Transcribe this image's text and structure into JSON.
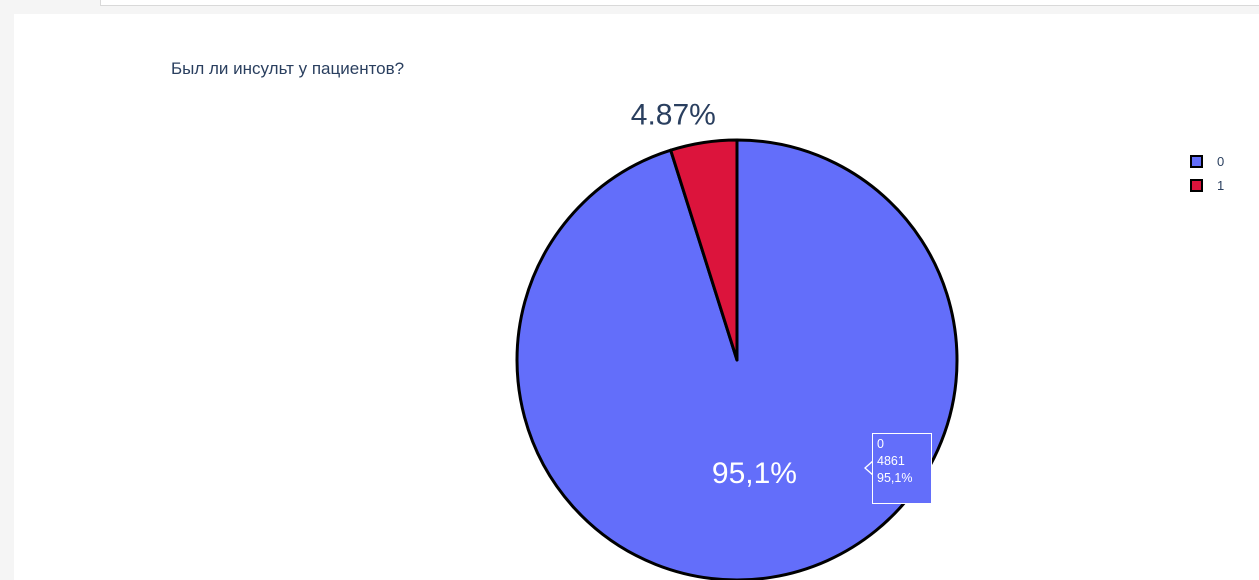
{
  "chart_data": {
    "type": "pie",
    "title": "Был ли инсульт у пациентов?",
    "categories": [
      "0",
      "1"
    ],
    "values": [
      4861,
      249
    ],
    "percent_labels": [
      "95,1%",
      "4.87%"
    ],
    "colors": [
      "#636efa",
      "#dc143c"
    ],
    "line_color": "#000000",
    "legend": {
      "placement": "top-right",
      "entries": [
        {
          "label": "0",
          "color": "#636efa"
        },
        {
          "label": "1",
          "color": "#dc143c"
        }
      ]
    },
    "hover": {
      "label": "0",
      "value": "4861",
      "percent": "95,1%"
    }
  }
}
